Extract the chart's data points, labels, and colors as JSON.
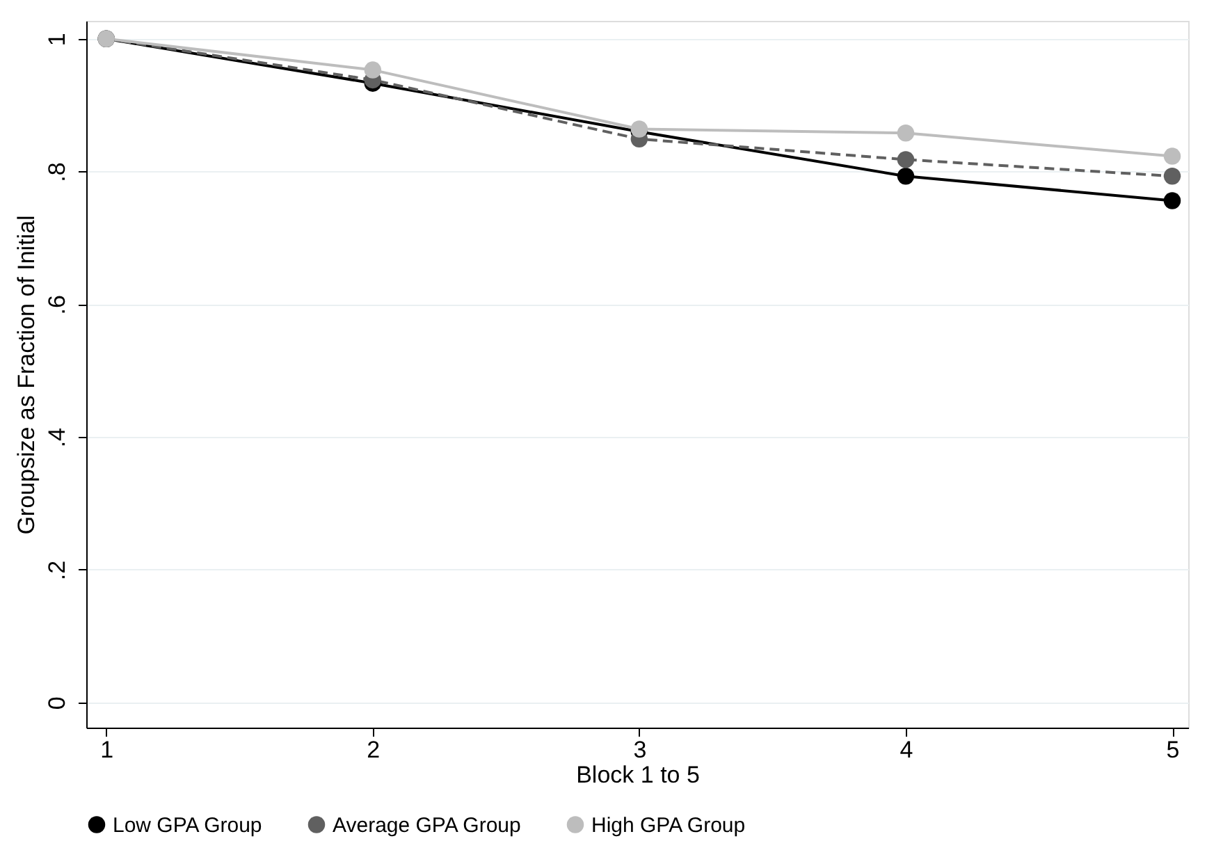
{
  "chart_data": {
    "type": "line",
    "xlabel": "Block 1 to 5",
    "ylabel": "Groupsize as Fraction of Initial",
    "x": [
      1,
      2,
      3,
      4,
      5
    ],
    "xlim": [
      0.925,
      5.06
    ],
    "xticks": [
      1,
      2,
      3,
      4,
      5
    ],
    "ylim": [
      -0.038,
      1.027
    ],
    "yticks": [
      0,
      {
        "value": 0.2,
        "label": ".2"
      },
      {
        "value": 0.4,
        "label": ".4"
      },
      {
        "value": 0.6,
        "label": ".6"
      },
      {
        "value": 0.8,
        "label": ".8"
      },
      1
    ],
    "grid": "y",
    "legend": "bottom",
    "marker": "circle",
    "series": [
      {
        "name": "Low GPA Group",
        "color": "#000000",
        "line_style": "solid",
        "values": [
          1.0,
          0.933,
          0.86,
          0.793,
          0.756
        ]
      },
      {
        "name": "Average GPA Group",
        "color": "#606060",
        "line_style": "dashed",
        "values": [
          1.0,
          0.938,
          0.849,
          0.818,
          0.793
        ]
      },
      {
        "name": "High GPA Group",
        "color": "#bdbdbd",
        "line_style": "solid",
        "values": [
          1.0,
          0.953,
          0.864,
          0.858,
          0.823
        ]
      }
    ]
  }
}
